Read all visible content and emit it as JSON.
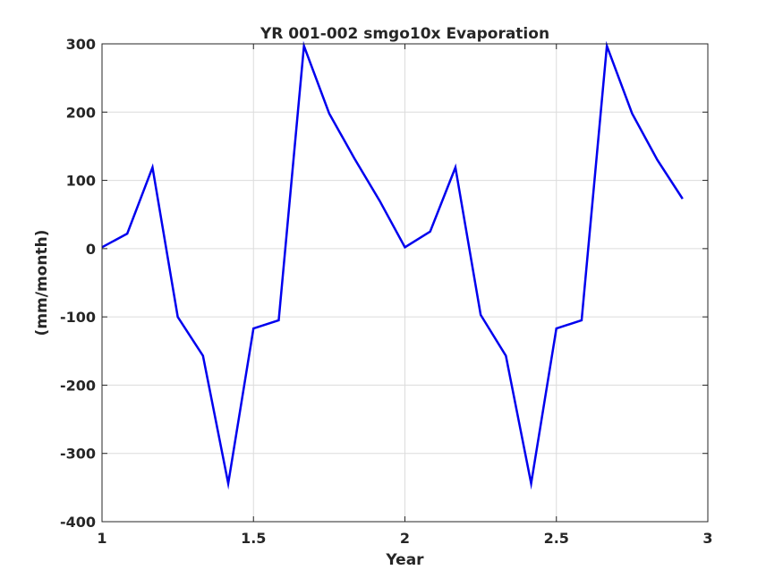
{
  "chart_data": {
    "type": "line",
    "title": "YR 001-002 smgo10x Evaporation",
    "xlabel": "Year",
    "ylabel": "(mm/month)",
    "xlim": [
      1,
      3
    ],
    "ylim": [
      -400,
      300
    ],
    "xticks": [
      1,
      1.5,
      2,
      2.5,
      3
    ],
    "xtick_labels": [
      "1",
      "1.5",
      "2",
      "2.5",
      "3"
    ],
    "yticks": [
      -400,
      -300,
      -200,
      -100,
      0,
      100,
      200,
      300
    ],
    "ytick_labels": [
      "-400",
      "-300",
      "-200",
      "-100",
      "0",
      "100",
      "200",
      "300"
    ],
    "grid": true,
    "series": [
      {
        "color": "#0000ee",
        "x": [
          1.0,
          1.0833,
          1.1667,
          1.25,
          1.3333,
          1.4167,
          1.5,
          1.5833,
          1.6667,
          1.75,
          1.8333,
          1.9167,
          2.0,
          2.0833,
          2.1667,
          2.25,
          2.3333,
          2.4167,
          2.5,
          2.5833,
          2.6667,
          2.75,
          2.8333,
          2.9167
        ],
        "y": [
          2,
          22,
          119,
          -100,
          -157,
          -344,
          -117,
          -105,
          297,
          198,
          132,
          70,
          2,
          25,
          119,
          -97,
          -157,
          -344,
          -117,
          -105,
          297,
          198,
          130,
          73
        ]
      }
    ]
  }
}
